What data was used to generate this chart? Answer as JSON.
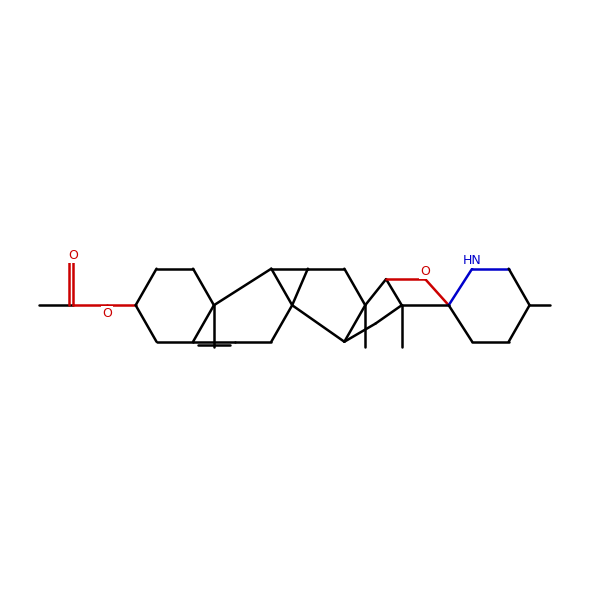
{
  "bg_color": "#ffffff",
  "bond_color": "#000000",
  "oxygen_color": "#cc0000",
  "nitrogen_color": "#0000cc",
  "line_width": 1.8,
  "figsize": [
    6.0,
    6.0
  ],
  "dpi": 100,
  "xlim": [
    -0.5,
    11.0
  ],
  "ylim": [
    1.5,
    6.8
  ]
}
